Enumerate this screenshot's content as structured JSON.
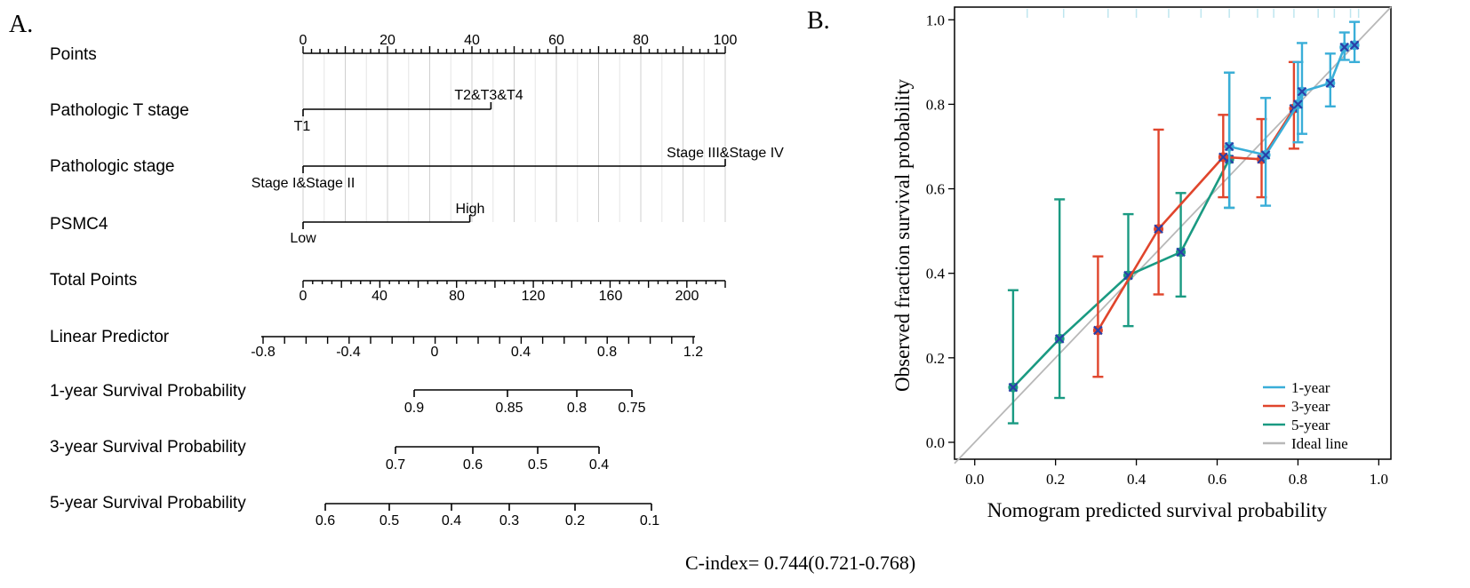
{
  "panel_a": {
    "label": "A.",
    "rows": [
      {
        "label": "Points",
        "ticks": [
          "0",
          "20",
          "40",
          "60",
          "80",
          "100"
        ]
      },
      {
        "label": "Pathologic T stage",
        "level_low": "T1",
        "level_high": "T2&T3&T4",
        "points_high": 44.5
      },
      {
        "label": "Pathologic stage",
        "level_low": "Stage I&Stage II",
        "level_high": "Stage III&Stage IV",
        "points_high": 100
      },
      {
        "label": "PSMC4",
        "level_low": "Low",
        "level_high": "High",
        "points_high": 39.5
      },
      {
        "label": "Total Points",
        "ticks": [
          "0",
          "40",
          "80",
          "120",
          "160",
          "200"
        ]
      },
      {
        "label": "Linear Predictor",
        "ticks": [
          "-0.8",
          "-0.4",
          "0",
          "0.4",
          "0.8",
          "1.2"
        ]
      },
      {
        "label": "1-year Survival Probability",
        "ticks": [
          "0.9",
          "0.85",
          "0.8",
          "0.75"
        ]
      },
      {
        "label": "3-year Survival Probability",
        "ticks": [
          "0.7",
          "0.6",
          "0.5",
          "0.4"
        ]
      },
      {
        "label": "5-year Survival Probability",
        "ticks": [
          "0.6",
          "0.5",
          "0.4",
          "0.3",
          "0.2",
          "0.1"
        ]
      }
    ],
    "c_index": "C-index= 0.744(0.721-0.768)"
  },
  "chart_data": [
    {
      "type": "table",
      "title": "",
      "description_rows": [
        "Points",
        "Pathologic T stage",
        "Pathologic stage",
        "PSMC4",
        "Total Points",
        "Linear Predictor",
        "1-year Survival Probability",
        "3-year Survival Probability",
        "5-year Survival Probability"
      ],
      "points_scale": [
        0,
        100
      ],
      "total_points_scale": [
        0,
        220
      ],
      "linear_predictor_scale": [
        -0.8,
        1.2
      ]
    },
    {
      "type": "line",
      "panel_label": "B.",
      "xlabel": "Nomogram predicted survival probability",
      "ylabel": "Observed fraction survival probability",
      "xlim": [
        -0.05,
        1.03
      ],
      "ylim": [
        -0.04,
        1.03
      ],
      "x_ticks": [
        "0.0",
        "0.2",
        "0.4",
        "0.6",
        "0.8",
        "1.0"
      ],
      "y_ticks": [
        "0.0",
        "0.2",
        "0.4",
        "0.6",
        "0.8",
        "1.0"
      ],
      "legend_position": "bottom-right",
      "series": [
        {
          "name": "1-year",
          "color": "#3aaed8",
          "x": [
            0.63,
            0.72,
            0.8,
            0.81,
            0.88,
            0.915,
            0.94
          ],
          "y": [
            0.7,
            0.68,
            0.8,
            0.83,
            0.85,
            0.935,
            0.94
          ],
          "err_low": [
            0.555,
            0.56,
            0.71,
            0.73,
            0.795,
            0.905,
            0.9
          ],
          "err_high": [
            0.875,
            0.815,
            0.9,
            0.945,
            0.92,
            0.97,
            0.995
          ]
        },
        {
          "name": "3-year",
          "color": "#e0452c",
          "x": [
            0.305,
            0.455,
            0.615,
            0.71,
            0.79
          ],
          "y": [
            0.265,
            0.505,
            0.675,
            0.67,
            0.79
          ],
          "err_low": [
            0.155,
            0.35,
            0.58,
            0.58,
            0.695
          ],
          "err_high": [
            0.44,
            0.74,
            0.775,
            0.765,
            0.9
          ]
        },
        {
          "name": "5-year",
          "color": "#1a9a82",
          "x": [
            0.095,
            0.21,
            0.38,
            0.51,
            0.63
          ],
          "y": [
            0.13,
            0.245,
            0.395,
            0.45,
            0.67
          ],
          "err_low": [
            0.045,
            0.105,
            0.275,
            0.345,
            0.555
          ],
          "err_high": [
            0.36,
            0.575,
            0.54,
            0.59,
            0.875
          ]
        },
        {
          "name": "Ideal line",
          "color": "#b8b8b8",
          "x": [
            -0.05,
            1.03
          ],
          "y": [
            -0.05,
            1.03
          ]
        }
      ]
    }
  ]
}
